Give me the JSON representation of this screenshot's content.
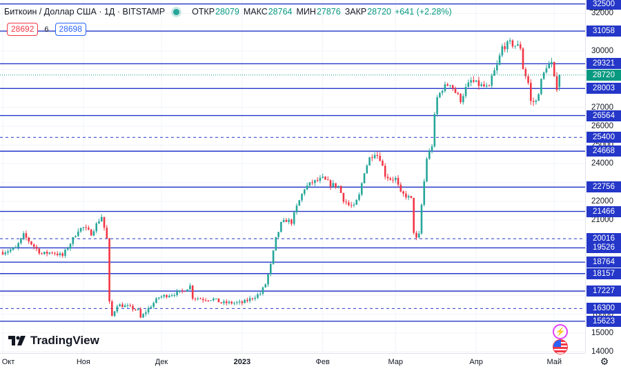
{
  "header": {
    "symbol": "Биткоин / Доллар США · 1Д · BITSTAMP",
    "open_label": "ОТКР",
    "open": "28079",
    "high_label": "МАКС",
    "high": "28764",
    "low_label": "МИН",
    "low": "27876",
    "close_label": "ЗАКР",
    "close": "28720",
    "change": "+641 (+2.28%)"
  },
  "trade": {
    "sell": "28692",
    "spread": "6",
    "buy": "28698"
  },
  "currency": {
    "label": "USD",
    "icon": "chevron-down-icon"
  },
  "branding": {
    "name": "TradingView"
  },
  "colors": {
    "up": "#26a69a",
    "down": "#f23645",
    "level": "#2437c8",
    "last": "#089981"
  },
  "chart_data": {
    "type": "candlestick",
    "symbol": "BTC/USD",
    "timeframe": "1D",
    "y_range": [
      13600,
      32600
    ],
    "y_ticks": [
      14000,
      15000,
      16000,
      17000,
      18000,
      19000,
      20000,
      21000,
      22000,
      23000,
      24000,
      25000,
      26000,
      27000,
      28000,
      29000,
      30000,
      31000,
      32000
    ],
    "x_labels": [
      {
        "label": "Окт",
        "bold": false,
        "index": 0
      },
      {
        "label": "Ноя",
        "bold": false,
        "index": 31
      },
      {
        "label": "Дек",
        "bold": false,
        "index": 61
      },
      {
        "label": "2023",
        "bold": true,
        "index": 92
      },
      {
        "label": "Фев",
        "bold": false,
        "index": 123
      },
      {
        "label": "Мар",
        "bold": false,
        "index": 151
      },
      {
        "label": "Апр",
        "bold": false,
        "index": 182
      },
      {
        "label": "Май",
        "bold": false,
        "index": 212
      }
    ],
    "levels": [
      {
        "value": 32500,
        "style": "solid"
      },
      {
        "value": 31058,
        "style": "solid"
      },
      {
        "value": 29321,
        "style": "solid"
      },
      {
        "value": 28003,
        "style": "solid"
      },
      {
        "value": 26564,
        "style": "solid"
      },
      {
        "value": 25400,
        "style": "dashed"
      },
      {
        "value": 24668,
        "style": "solid"
      },
      {
        "value": 22756,
        "style": "solid"
      },
      {
        "value": 21466,
        "style": "solid"
      },
      {
        "value": 20016,
        "style": "dashed"
      },
      {
        "value": 19526,
        "style": "solid"
      },
      {
        "value": 18764,
        "style": "solid"
      },
      {
        "value": 18157,
        "style": "solid"
      },
      {
        "value": 17227,
        "style": "solid"
      },
      {
        "value": 16300,
        "style": "dashed"
      },
      {
        "value": 15623,
        "style": "solid"
      }
    ],
    "last_price": 28720,
    "anchors": [
      [
        0,
        19300
      ],
      [
        5,
        19500
      ],
      [
        8,
        20200
      ],
      [
        12,
        19600
      ],
      [
        15,
        19200
      ],
      [
        19,
        19300
      ],
      [
        23,
        19100
      ],
      [
        27,
        20000
      ],
      [
        29,
        20500
      ],
      [
        31,
        20600
      ],
      [
        34,
        20300
      ],
      [
        37,
        21000
      ],
      [
        38,
        21200
      ],
      [
        40,
        20000
      ],
      [
        41,
        16600
      ],
      [
        42,
        15900
      ],
      [
        44,
        16500
      ],
      [
        48,
        16400
      ],
      [
        52,
        16200
      ],
      [
        53,
        15800
      ],
      [
        56,
        16300
      ],
      [
        60,
        16900
      ],
      [
        63,
        17000
      ],
      [
        66,
        17100
      ],
      [
        69,
        17200
      ],
      [
        72,
        17500
      ],
      [
        73,
        16900
      ],
      [
        77,
        16800
      ],
      [
        81,
        16800
      ],
      [
        84,
        16600
      ],
      [
        88,
        16600
      ],
      [
        92,
        16600
      ],
      [
        95,
        16800
      ],
      [
        99,
        17100
      ],
      [
        101,
        17600
      ],
      [
        103,
        18600
      ],
      [
        105,
        20000
      ],
      [
        107,
        20800
      ],
      [
        109,
        21000
      ],
      [
        111,
        20900
      ],
      [
        113,
        21700
      ],
      [
        116,
        22700
      ],
      [
        119,
        23000
      ],
      [
        123,
        23200
      ],
      [
        126,
        22900
      ],
      [
        129,
        22800
      ],
      [
        131,
        22100
      ],
      [
        133,
        21800
      ],
      [
        135,
        21700
      ],
      [
        137,
        22300
      ],
      [
        139,
        23600
      ],
      [
        141,
        24300
      ],
      [
        143,
        24600
      ],
      [
        145,
        24300
      ],
      [
        147,
        23400
      ],
      [
        149,
        23200
      ],
      [
        151,
        23200
      ],
      [
        153,
        22400
      ],
      [
        155,
        22300
      ],
      [
        157,
        22100
      ],
      [
        158,
        20400
      ],
      [
        159,
        20000
      ],
      [
        160,
        20200
      ],
      [
        161,
        21800
      ],
      [
        163,
        24300
      ],
      [
        164,
        24600
      ],
      [
        165,
        25000
      ],
      [
        166,
        26500
      ],
      [
        167,
        27500
      ],
      [
        169,
        28000
      ],
      [
        172,
        28300
      ],
      [
        174,
        27800
      ],
      [
        176,
        27400
      ],
      [
        178,
        28000
      ],
      [
        180,
        28400
      ],
      [
        183,
        28200
      ],
      [
        185,
        28100
      ],
      [
        187,
        28000
      ],
      [
        188,
        28600
      ],
      [
        190,
        29200
      ],
      [
        192,
        30200
      ],
      [
        195,
        30400
      ],
      [
        197,
        30300
      ],
      [
        199,
        30200
      ],
      [
        200,
        29100
      ],
      [
        202,
        28300
      ],
      [
        203,
        27300
      ],
      [
        205,
        27300
      ],
      [
        207,
        28400
      ],
      [
        209,
        29200
      ],
      [
        211,
        29300
      ],
      [
        212,
        28500
      ],
      [
        213,
        28079
      ],
      [
        214,
        28720
      ]
    ],
    "last_candle": {
      "open": 28079,
      "high": 28764,
      "low": 27876,
      "close": 28720
    }
  }
}
